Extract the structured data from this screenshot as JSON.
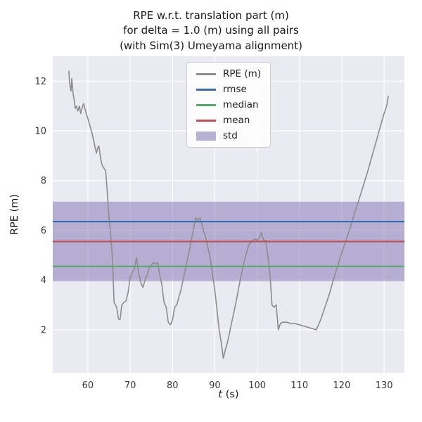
{
  "header": {
    "line1": "RPE w.r.t. translation part (m)",
    "line2": "for delta = 1.0 (m) using all pairs",
    "line3": "(with Sim(3) Umeyama alignment)"
  },
  "axes": {
    "ylabel": "RPE (m)",
    "xlabel_var": "t",
    "xlabel_unit": " (s)"
  },
  "chart_data": {
    "type": "line",
    "title": "RPE w.r.t. translation part (m)\nfor delta = 1.0 (m) using all pairs\n(with Sim(3) Umeyama alignment)",
    "xlabel": "t (s)",
    "ylabel": "RPE (m)",
    "xlim": [
      51.7,
      134.8
    ],
    "ylim": [
      0.27,
      13.0
    ],
    "xticks": [
      60,
      70,
      80,
      90,
      100,
      110,
      120,
      130
    ],
    "yticks": [
      2,
      4,
      6,
      8,
      10,
      12
    ],
    "grid": true,
    "legend_position": "upper center",
    "stats": {
      "rmse": 6.35,
      "mean": 5.55,
      "median": 4.55,
      "std_low": 3.95,
      "std_high": 7.15
    },
    "colors": {
      "rpe": "#8c8c8c",
      "rmse": "#3a6ab0",
      "median": "#55a868",
      "mean": "#c44e52",
      "std": "#8172b2",
      "plot_bg": "#eaeaf2",
      "grid": "#ffffff",
      "tick_text": "#3a3a3a"
    },
    "legend": [
      {
        "label": "RPE (m)",
        "type": "line",
        "color_key": "rpe"
      },
      {
        "label": "rmse",
        "type": "line",
        "color_key": "rmse"
      },
      {
        "label": "median",
        "type": "line",
        "color_key": "median"
      },
      {
        "label": "mean",
        "type": "line",
        "color_key": "mean"
      },
      {
        "label": "std",
        "type": "patch",
        "color_key": "std"
      }
    ],
    "series": {
      "name": "RPE (m)",
      "t": [
        55.5,
        55.7,
        56.0,
        56.2,
        56.5,
        56.8,
        57.0,
        57.3,
        57.6,
        58.0,
        58.3,
        58.6,
        59.0,
        59.3,
        59.6,
        60.0,
        60.5,
        61.0,
        61.5,
        62.0,
        62.3,
        62.6,
        63.0,
        63.4,
        63.8,
        64.2,
        64.6,
        65.0,
        65.4,
        65.8,
        66.2,
        66.5,
        66.8,
        67.2,
        67.6,
        68.0,
        68.5,
        69.0,
        69.5,
        70.0,
        70.5,
        71.0,
        71.5,
        72.0,
        72.5,
        73.0,
        73.5,
        74.0,
        74.5,
        75.0,
        75.5,
        76.0,
        76.5,
        77.0,
        77.5,
        78.0,
        78.5,
        79.0,
        79.5,
        80.0,
        80.5,
        81.0,
        82.0,
        83.0,
        84.0,
        85.0,
        85.5,
        86.0,
        86.5,
        87.0,
        88.0,
        89.0,
        89.5,
        90.0,
        90.5,
        91.0,
        91.5,
        92.0,
        92.5,
        93.0,
        93.5,
        94.0,
        95.0,
        96.0,
        97.0,
        98.0,
        99.0,
        99.5,
        100.0,
        100.5,
        101.0,
        101.5,
        102.0,
        102.5,
        103.0,
        103.5,
        104.0,
        104.5,
        105.0,
        105.5,
        106.0,
        107.0,
        108.0,
        109.0,
        110.0,
        111.0,
        112.0,
        113.0,
        114.0,
        115.0,
        116.0,
        117.0,
        118.0,
        119.0,
        120.0,
        121.0,
        122.0,
        123.0,
        124.0,
        125.0,
        126.0,
        127.0,
        128.0,
        129.0,
        130.0,
        130.6,
        131.0
      ],
      "values": [
        12.4,
        11.9,
        11.6,
        12.1,
        11.5,
        11.2,
        10.9,
        11.0,
        10.8,
        11.0,
        10.7,
        10.9,
        11.1,
        10.9,
        10.7,
        10.5,
        10.2,
        9.9,
        9.5,
        9.1,
        9.3,
        9.4,
        8.9,
        8.6,
        8.5,
        8.4,
        7.5,
        6.5,
        5.8,
        4.9,
        3.1,
        3.0,
        2.9,
        2.45,
        2.4,
        3.0,
        3.1,
        3.15,
        3.5,
        4.1,
        4.3,
        4.45,
        4.9,
        4.3,
        3.9,
        3.7,
        4.0,
        4.2,
        4.5,
        4.6,
        4.7,
        4.65,
        4.7,
        4.2,
        3.8,
        3.1,
        2.9,
        2.3,
        2.2,
        2.4,
        2.9,
        3.0,
        3.6,
        4.4,
        5.2,
        6.1,
        6.5,
        6.4,
        6.5,
        6.2,
        5.6,
        4.8,
        4.2,
        3.6,
        2.8,
        2.0,
        1.5,
        0.85,
        1.2,
        1.5,
        1.9,
        2.3,
        3.1,
        4.0,
        4.8,
        5.4,
        5.6,
        5.65,
        5.6,
        5.7,
        5.9,
        5.6,
        5.6,
        5.0,
        4.3,
        3.0,
        2.9,
        3.0,
        2.0,
        2.25,
        2.3,
        2.3,
        2.25,
        2.25,
        2.2,
        2.15,
        2.1,
        2.05,
        2.0,
        2.4,
        2.9,
        3.4,
        4.0,
        4.55,
        5.1,
        5.6,
        6.1,
        6.7,
        7.2,
        7.75,
        8.3,
        8.9,
        9.5,
        10.1,
        10.7,
        11.0,
        11.4
      ]
    }
  }
}
